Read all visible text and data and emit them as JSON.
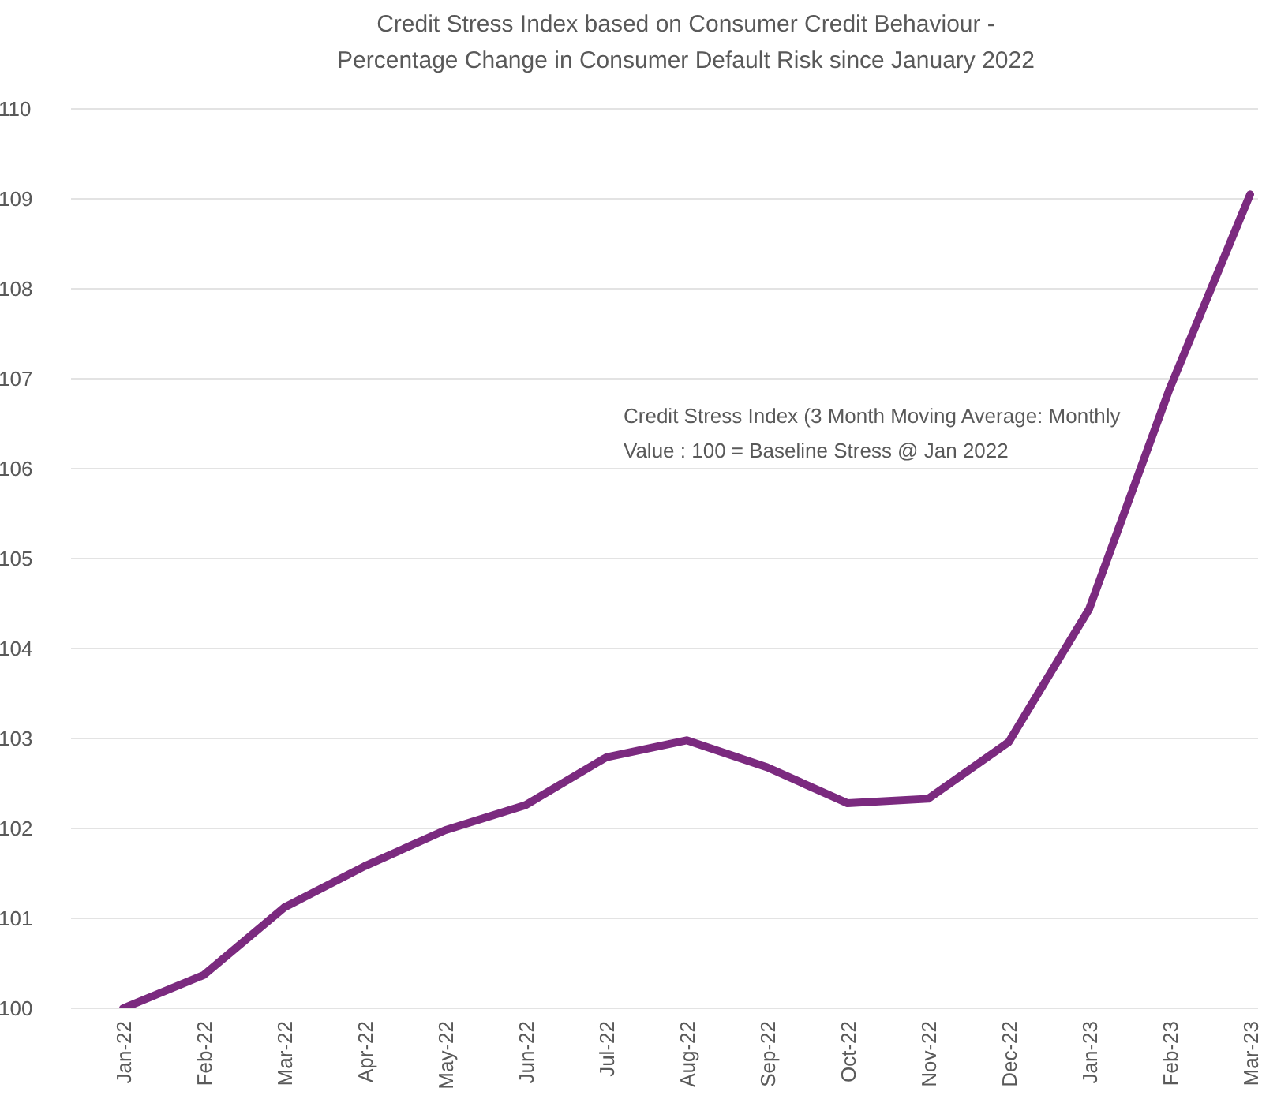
{
  "chart_data": {
    "type": "line",
    "title": "Credit Stress Index based on Consumer Credit Behaviour -",
    "subtitle": "Percentage Change in Consumer Default Risk since January 2022",
    "categories": [
      "Jan-22",
      "Feb-22",
      "Mar-22",
      "Apr-22",
      "May-22",
      "Jun-22",
      "Jul-22",
      "Aug-22",
      "Sep-22",
      "Oct-22",
      "Nov-22",
      "Dec-22",
      "Jan-23",
      "Feb-23",
      "Mar-23"
    ],
    "series": [
      {
        "name": "Credit Stress Index (3 Month Moving Average: Monthly Value : 100 = Baseline Stress @ Jan 2022",
        "color": "#7b2a7f",
        "values": [
          100.0,
          100.37,
          101.12,
          101.58,
          101.98,
          102.26,
          102.79,
          102.98,
          102.68,
          102.28,
          102.33,
          102.96,
          104.44,
          106.89,
          109.05
        ]
      }
    ],
    "ylim": [
      100,
      110
    ],
    "yticks": [
      100,
      101,
      102,
      103,
      104,
      105,
      106,
      107,
      108,
      109,
      110
    ],
    "grid": "y"
  }
}
